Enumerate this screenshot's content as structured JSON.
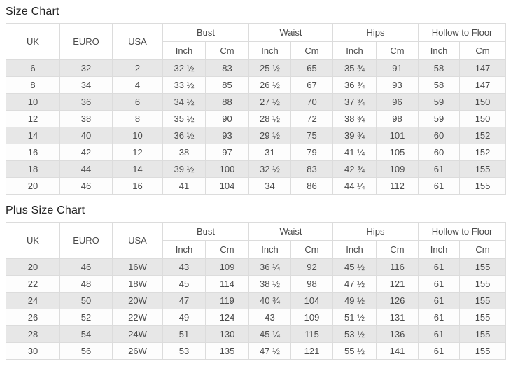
{
  "header": {
    "simple": [
      "UK",
      "EURO",
      "USA"
    ],
    "groups": [
      "Bust",
      "Waist",
      "Hips",
      "Hollow to Floor"
    ],
    "units": [
      "Inch",
      "Cm",
      "Inch",
      "Cm",
      "Inch",
      "Cm",
      "Inch",
      "Cm"
    ]
  },
  "tables": [
    {
      "title": "Size Chart",
      "rows": [
        [
          "6",
          "32",
          "2",
          "32 ½",
          "83",
          "25 ½",
          "65",
          "35 ¾",
          "91",
          "58",
          "147"
        ],
        [
          "8",
          "34",
          "4",
          "33 ½",
          "85",
          "26 ½",
          "67",
          "36 ¾",
          "93",
          "58",
          "147"
        ],
        [
          "10",
          "36",
          "6",
          "34 ½",
          "88",
          "27 ½",
          "70",
          "37 ¾",
          "96",
          "59",
          "150"
        ],
        [
          "12",
          "38",
          "8",
          "35 ½",
          "90",
          "28 ½",
          "72",
          "38 ¾",
          "98",
          "59",
          "150"
        ],
        [
          "14",
          "40",
          "10",
          "36 ½",
          "93",
          "29 ½",
          "75",
          "39 ¾",
          "101",
          "60",
          "152"
        ],
        [
          "16",
          "42",
          "12",
          "38",
          "97",
          "31",
          "79",
          "41 ¼",
          "105",
          "60",
          "152"
        ],
        [
          "18",
          "44",
          "14",
          "39 ½",
          "100",
          "32 ½",
          "83",
          "42 ¾",
          "109",
          "61",
          "155"
        ],
        [
          "20",
          "46",
          "16",
          "41",
          "104",
          "34",
          "86",
          "44 ¼",
          "112",
          "61",
          "155"
        ]
      ]
    },
    {
      "title": "Plus Size Chart",
      "rows": [
        [
          "20",
          "46",
          "16W",
          "43",
          "109",
          "36 ¼",
          "92",
          "45 ½",
          "116",
          "61",
          "155"
        ],
        [
          "22",
          "48",
          "18W",
          "45",
          "114",
          "38 ½",
          "98",
          "47 ½",
          "121",
          "61",
          "155"
        ],
        [
          "24",
          "50",
          "20W",
          "47",
          "119",
          "40 ¾",
          "104",
          "49 ½",
          "126",
          "61",
          "155"
        ],
        [
          "26",
          "52",
          "22W",
          "49",
          "124",
          "43",
          "109",
          "51 ½",
          "131",
          "61",
          "155"
        ],
        [
          "28",
          "54",
          "24W",
          "51",
          "130",
          "45 ¼",
          "115",
          "53 ½",
          "136",
          "61",
          "155"
        ],
        [
          "30",
          "56",
          "26W",
          "53",
          "135",
          "47 ½",
          "121",
          "55 ½",
          "141",
          "61",
          "155"
        ]
      ]
    }
  ],
  "colors": {
    "row_shaded": "#e7e7e7",
    "row_plain": "#fdfdfd",
    "border": "#dcdcdc",
    "text": "#4b4b4b",
    "title_text": "#222222"
  }
}
